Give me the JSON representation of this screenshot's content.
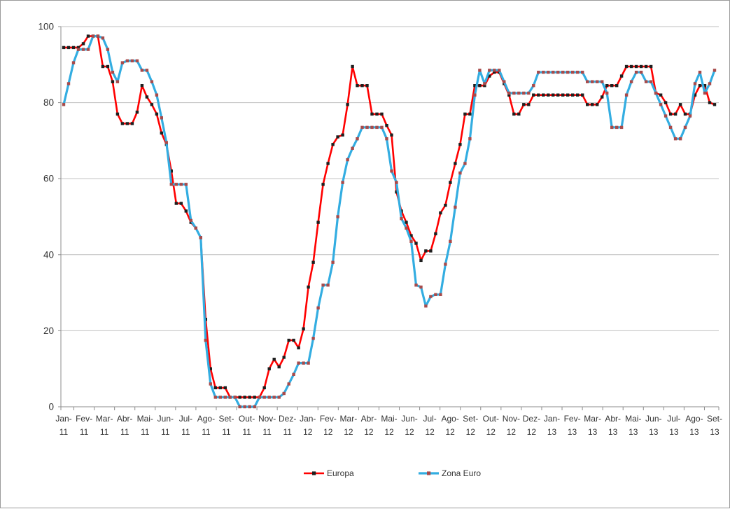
{
  "chart_data": {
    "type": "line",
    "title": "",
    "xlabel": "",
    "ylabel": "",
    "ylim": [
      0,
      100
    ],
    "y_ticks": [
      0,
      20,
      40,
      60,
      80,
      100
    ],
    "grid": "horizontal",
    "legend_position": "bottom",
    "categories": [
      "Jan-11",
      "Fev-11",
      "Mar-11",
      "Abr-11",
      "Mai-11",
      "Jun-11",
      "Jul-11",
      "Ago-11",
      "Set-11",
      "Out-11",
      "Nov-11",
      "Dez-11",
      "Jan-12",
      "Fev-12",
      "Mar-12",
      "Abr-12",
      "Mai-12",
      "Jun-12",
      "Jul-12",
      "Ago-12",
      "Set-12",
      "Out-12",
      "Nov-12",
      "Dez-12",
      "Jan-13",
      "Fev-13",
      "Mar-13",
      "Abr-13",
      "Mai-13",
      "Jun-13",
      "Jul-13",
      "Ago-13",
      "Set-13"
    ],
    "series": [
      {
        "name": "Europa",
        "color": "#ff0000",
        "marker_color": "#1f1f1f",
        "values": [
          94.5,
          94.5,
          94.5,
          94.5,
          95.5,
          97.5,
          97.5,
          97.5,
          89.5,
          89.5,
          85.5,
          77,
          74.5,
          74.5,
          74.5,
          77.5,
          84.5,
          81.5,
          79.5,
          77,
          72,
          69,
          62,
          53.5,
          53.5,
          51.5,
          48.5,
          47,
          44.5,
          23,
          10,
          5,
          5,
          5,
          2.5,
          2.5,
          2.5,
          2.5,
          2.5,
          2.5,
          2.5,
          5,
          10,
          12.5,
          10.5,
          13,
          17.5,
          17.5,
          15.5,
          20.5,
          31.5,
          38,
          48.5,
          58.5,
          64,
          69,
          71,
          71.5,
          79.5,
          89.5,
          84.5,
          84.5,
          84.5,
          77,
          77,
          77,
          74,
          71.5,
          56.5,
          51.5,
          48.5,
          45,
          43,
          38.5,
          41,
          41,
          45.5,
          51,
          53,
          59,
          64,
          69,
          77,
          77,
          84.5,
          84.5,
          84.5,
          87,
          88,
          88,
          85,
          82,
          77,
          77,
          79.5,
          79.5,
          82,
          82,
          82,
          82,
          82,
          82,
          82,
          82,
          82,
          82,
          82,
          79.5,
          79.5,
          79.5,
          81.5,
          84.5,
          84.5,
          84.5,
          87,
          89.5,
          89.5,
          89.5,
          89.5,
          89.5,
          89.5,
          82.5,
          82,
          80,
          77,
          77,
          79.5,
          77,
          77,
          82,
          84.5,
          84.5,
          80,
          79.5
        ]
      },
      {
        "name": "Zona Euro",
        "color": "#33ade1",
        "marker_color": "#a84b4b",
        "values": [
          79.5,
          85,
          90.5,
          94,
          94,
          94,
          97.5,
          97.5,
          97,
          94,
          88,
          85.5,
          90.5,
          91,
          91,
          91,
          88.5,
          88.5,
          85.5,
          82,
          76,
          69.5,
          58.5,
          58.5,
          58.5,
          58.5,
          49,
          47,
          44.5,
          17.5,
          6,
          2.5,
          2.5,
          2.5,
          2.5,
          2.5,
          0,
          0,
          0,
          0,
          2.5,
          2.5,
          2.5,
          2.5,
          2.5,
          3.5,
          6,
          8.5,
          11.5,
          11.5,
          11.5,
          18,
          26,
          32,
          32,
          38,
          50,
          59,
          65,
          68,
          70.5,
          73.5,
          73.5,
          73.5,
          73.5,
          73.5,
          70.5,
          62,
          59,
          49.5,
          47,
          43.5,
          32,
          31.5,
          26.5,
          29,
          29.5,
          29.5,
          37.5,
          43.5,
          52.5,
          61.5,
          64,
          70.5,
          82,
          88.5,
          85,
          88.5,
          88.5,
          88.5,
          85.5,
          82.5,
          82.5,
          82.5,
          82.5,
          82.5,
          84.5,
          88,
          88,
          88,
          88,
          88,
          88,
          88,
          88,
          88,
          88,
          85.5,
          85.5,
          85.5,
          85.5,
          82.5,
          73.5,
          73.5,
          73.5,
          82,
          85.5,
          88,
          88,
          85.5,
          85.5,
          82.5,
          79.5,
          76.5,
          73.5,
          70.5,
          70.5,
          73.5,
          76.5,
          85,
          88,
          82.5,
          85,
          88.5
        ]
      }
    ]
  }
}
